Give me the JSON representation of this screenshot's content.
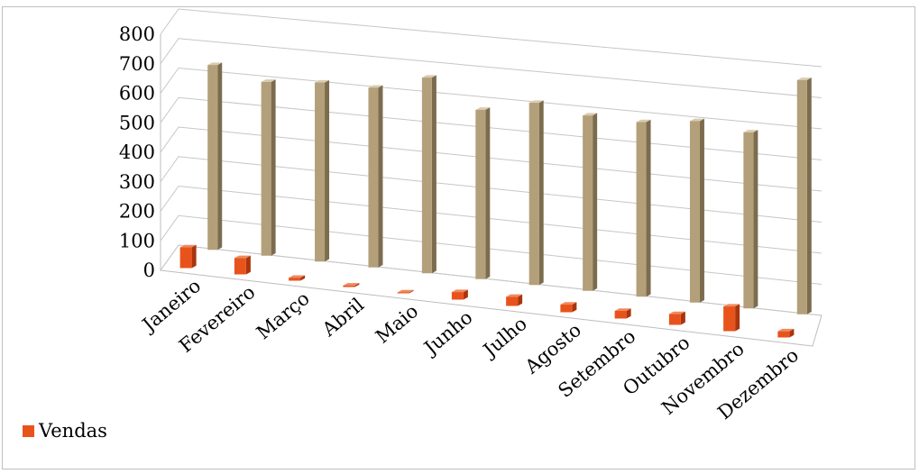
{
  "chart_data": {
    "type": "bar",
    "categories": [
      "Janeiro",
      "Fevereiro",
      "Março",
      "Abril",
      "Maio",
      "Junho",
      "Julho",
      "Agosto",
      "Setembro",
      "Outubro",
      "Novembro",
      "Dezembro"
    ],
    "series": [
      {
        "name": "Vendas",
        "values": [
          70,
          55,
          10,
          5,
          3,
          25,
          30,
          25,
          25,
          35,
          80,
          20
        ],
        "color": "#e8531c"
      },
      {
        "values": [
          625,
          585,
          600,
          600,
          650,
          560,
          600,
          575,
          570,
          590,
          570,
          755
        ],
        "color": "#b3a07a"
      }
    ],
    "yticks": [
      "0",
      "100",
      "200",
      "300",
      "400",
      "500",
      "600",
      "700",
      "800"
    ],
    "ylim": [
      0,
      800
    ],
    "grid": true,
    "legend": {
      "placement": "bottom-left",
      "entries": [
        "Vendas"
      ]
    }
  }
}
